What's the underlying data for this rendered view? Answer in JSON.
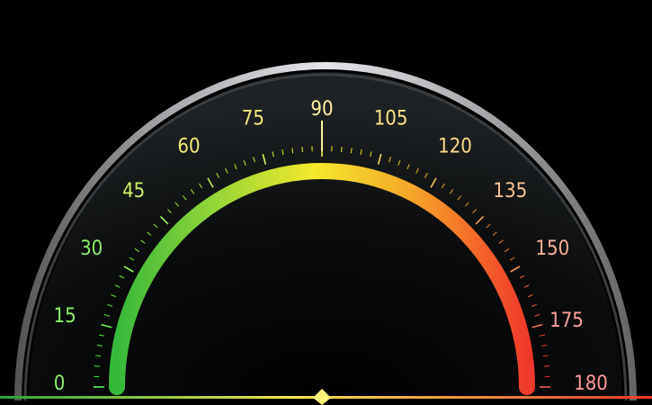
{
  "gauge": {
    "min": 0,
    "max": 180,
    "labels": [
      {
        "value": 0,
        "text": "0",
        "color": "#8cf06a"
      },
      {
        "value": 15,
        "text": "15",
        "color": "#8cf06a"
      },
      {
        "value": 30,
        "text": "30",
        "color": "#8cf06a"
      },
      {
        "value": 45,
        "text": "45",
        "color": "#c9f068"
      },
      {
        "value": 60,
        "text": "60",
        "color": "#f2ec72"
      },
      {
        "value": 75,
        "text": "75",
        "color": "#f7e97e"
      },
      {
        "value": 90,
        "text": "90",
        "color": "#fff0a0"
      },
      {
        "value": 105,
        "text": "105",
        "color": "#fce48a"
      },
      {
        "value": 120,
        "text": "120",
        "color": "#fcd98a"
      },
      {
        "value": 135,
        "text": "135",
        "color": "#fcc592"
      },
      {
        "value": 150,
        "text": "150",
        "color": "#fbb39a"
      },
      {
        "value": 175,
        "text": "175",
        "color": "#fba39a"
      },
      {
        "value": 180,
        "text": "180",
        "color": "#fb9999"
      }
    ],
    "colors": {
      "arc_start": "#3fbf3f",
      "arc_mid": "#f0ea2a",
      "arc_end": "#f03a2a",
      "bezel": "#c9c9cd",
      "needle_marker": "#fff27a",
      "background": "#000000"
    }
  }
}
